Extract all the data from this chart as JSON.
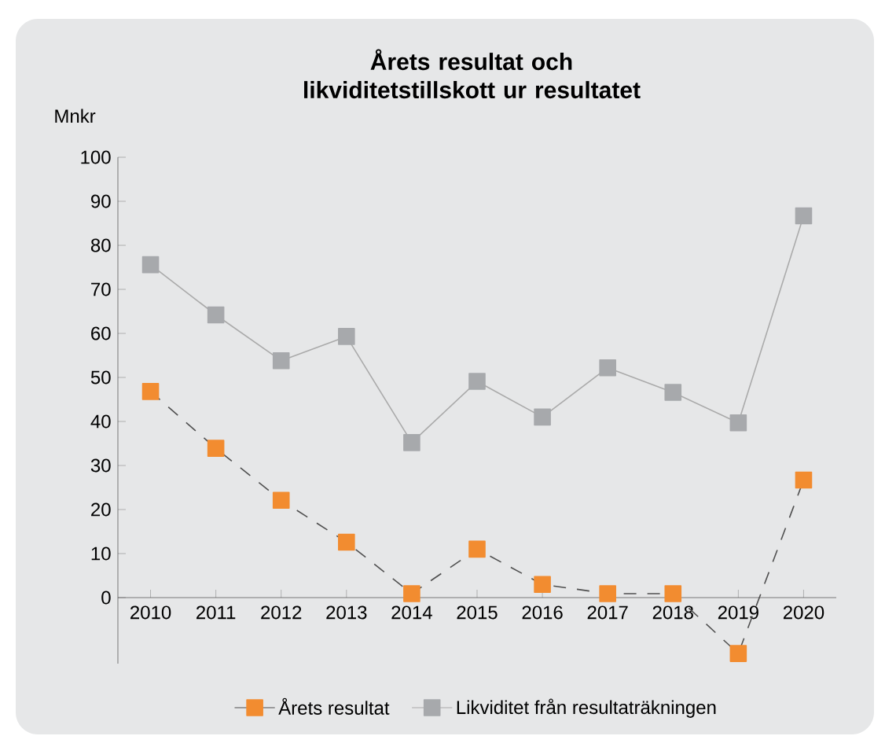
{
  "chart_data": {
    "type": "line",
    "title": "Årets resultat och likviditetstillskott ur resultatet",
    "ylabel": "Mnkr",
    "categories": [
      "2010",
      "2011",
      "2012",
      "2013",
      "2014",
      "2015",
      "2016",
      "2017",
      "2018",
      "2019",
      "2020"
    ],
    "ylim": [
      -15,
      100
    ],
    "yticks": [
      0,
      10,
      20,
      30,
      40,
      50,
      60,
      70,
      80,
      90,
      100
    ],
    "legend": "bottom",
    "marker": "square",
    "series": [
      {
        "name": "Årets resultat",
        "color": "#f28c30",
        "line_style": "dashed",
        "values": [
          46.8,
          33.9,
          22.1,
          12.6,
          0.9,
          11,
          3,
          0.9,
          0.9,
          -12.7,
          26.7
        ]
      },
      {
        "name": "Likviditet från resultaträkningen",
        "color": "#a7a9ac",
        "line_style": "solid",
        "values": [
          75.6,
          64.2,
          53.8,
          59.3,
          35.2,
          49.1,
          41,
          52.2,
          46.6,
          39.7,
          86.7
        ]
      }
    ]
  }
}
